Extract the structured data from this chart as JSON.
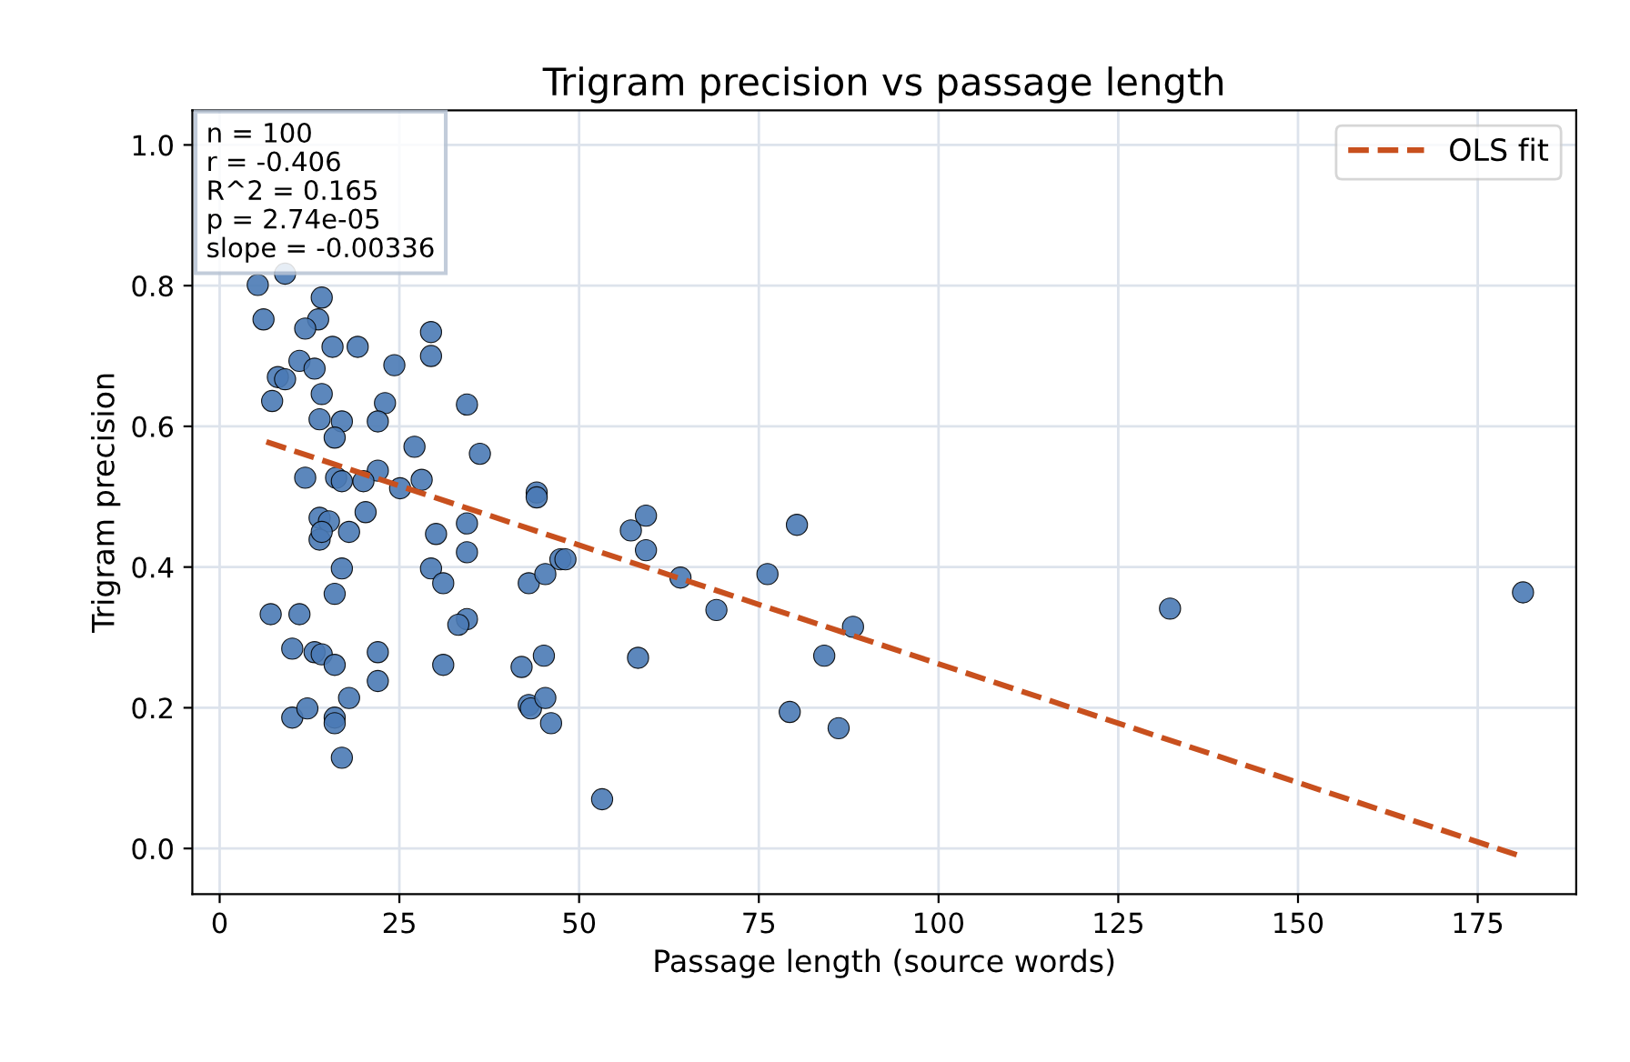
{
  "chart_data": {
    "type": "scatter",
    "title": "Trigram precision vs passage length",
    "xlabel": "Passage length (source words)",
    "ylabel": "Trigram precision",
    "xlim": [
      -3.8,
      188.7
    ],
    "ylim": [
      -0.065,
      1.049
    ],
    "xticks": [
      0,
      25,
      50,
      75,
      100,
      125,
      150,
      175
    ],
    "yticks": [
      {
        "value": 0,
        "label": "0.0"
      },
      0.2,
      0.4,
      0.6,
      0.8,
      {
        "value": 1,
        "label": "1.0"
      }
    ],
    "grid": true,
    "legend": "top right",
    "marker": "circle",
    "annotations": [
      "n = 100\nr = -0.406\nR^2 = 0.165\np = 2.74e-05\nslope = -0.00336"
    ],
    "series": [
      {
        "color": "#4a7ab5",
        "x": [
          9.1,
          5.3,
          6.1,
          13.7,
          11.9,
          29.4,
          14.2,
          11.1,
          8.1,
          9.1,
          13.2,
          15.7,
          19.2,
          24.3,
          29.4,
          7.3,
          14.2,
          23.0,
          34.4,
          13.9,
          17.0,
          22.0,
          16.0,
          27.1,
          36.2,
          11.9,
          16.2,
          17.0,
          22.0,
          20.0,
          25.1,
          28.1,
          13.9,
          15.2,
          13.9,
          14.2,
          20.3,
          18.0,
          30.1,
          34.4,
          34.4,
          44.1,
          44.1,
          17.0,
          16.0,
          29.4,
          31.1,
          43.0,
          45.3,
          47.4,
          48.1,
          7.1,
          11.1,
          10.1,
          13.2,
          14.2,
          16.0,
          22.0,
          22.0,
          34.4,
          33.2,
          31.1,
          42.0,
          45.1,
          18.0,
          10.1,
          12.2,
          16.0,
          16.0,
          17.0,
          43.0,
          43.3,
          45.3,
          46.1,
          59.3,
          57.2,
          59.3,
          64.1,
          69.1,
          76.2,
          80.3,
          88.1,
          84.1,
          58.2,
          53.2,
          79.3,
          86.1,
          132.2,
          181.3
        ],
        "values": [
          0.817,
          0.801,
          0.752,
          0.752,
          0.739,
          0.734,
          0.783,
          0.693,
          0.67,
          0.667,
          0.682,
          0.713,
          0.713,
          0.687,
          0.7,
          0.636,
          0.646,
          0.633,
          0.631,
          0.61,
          0.607,
          0.607,
          0.584,
          0.571,
          0.561,
          0.527,
          0.527,
          0.522,
          0.537,
          0.522,
          0.512,
          0.524,
          0.47,
          0.465,
          0.439,
          0.45,
          0.478,
          0.45,
          0.447,
          0.462,
          0.421,
          0.506,
          0.499,
          0.398,
          0.362,
          0.398,
          0.377,
          0.377,
          0.39,
          0.411,
          0.411,
          0.333,
          0.333,
          0.284,
          0.279,
          0.276,
          0.261,
          0.279,
          0.238,
          0.326,
          0.318,
          0.261,
          0.258,
          0.274,
          0.214,
          0.186,
          0.199,
          0.186,
          0.178,
          0.129,
          0.204,
          0.199,
          0.214,
          0.178,
          0.473,
          0.452,
          0.424,
          0.385,
          0.339,
          0.39,
          0.46,
          0.315,
          0.274,
          0.271,
          0.07,
          0.194,
          0.171,
          0.341,
          0.364
        ]
      },
      {
        "type": "line",
        "name": "OLS fit",
        "color": "#c8501e",
        "line_style": "dashed",
        "marker": "none",
        "x": [
          6.5,
          181.3
        ],
        "values": [
          0.578,
          -0.012
        ]
      }
    ]
  }
}
